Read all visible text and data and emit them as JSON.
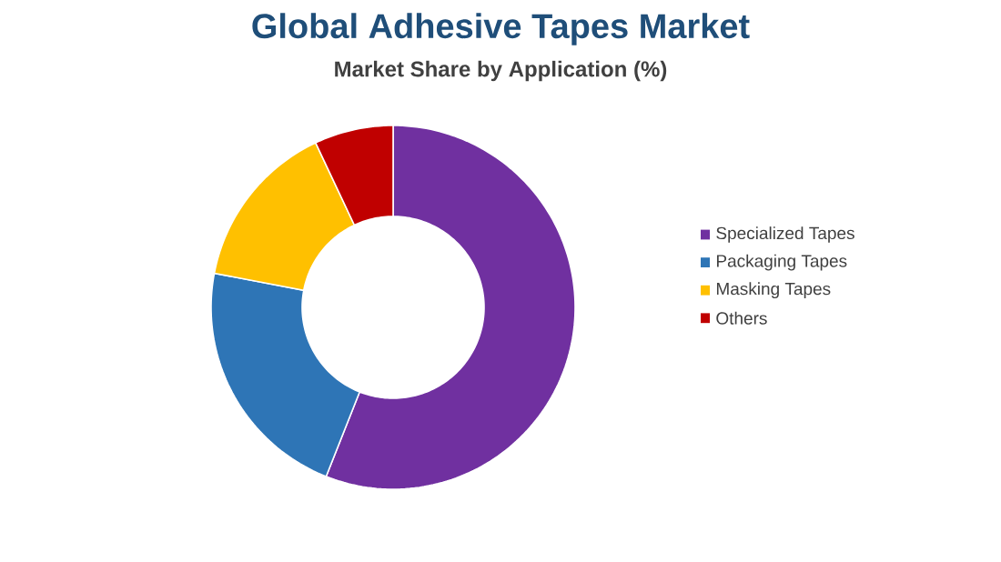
{
  "chart_data": {
    "type": "donut",
    "title": "Global Adhesive Tapes Market",
    "subtitle": "Market Share by Application (%)",
    "categories": [
      "Specialized Tapes",
      "Packaging Tapes",
      "Masking Tapes",
      "Others"
    ],
    "values": [
      56,
      22,
      15,
      7
    ],
    "colors": [
      "#7030a0",
      "#2e75b6",
      "#ffc000",
      "#c00000"
    ],
    "legend": "right"
  }
}
